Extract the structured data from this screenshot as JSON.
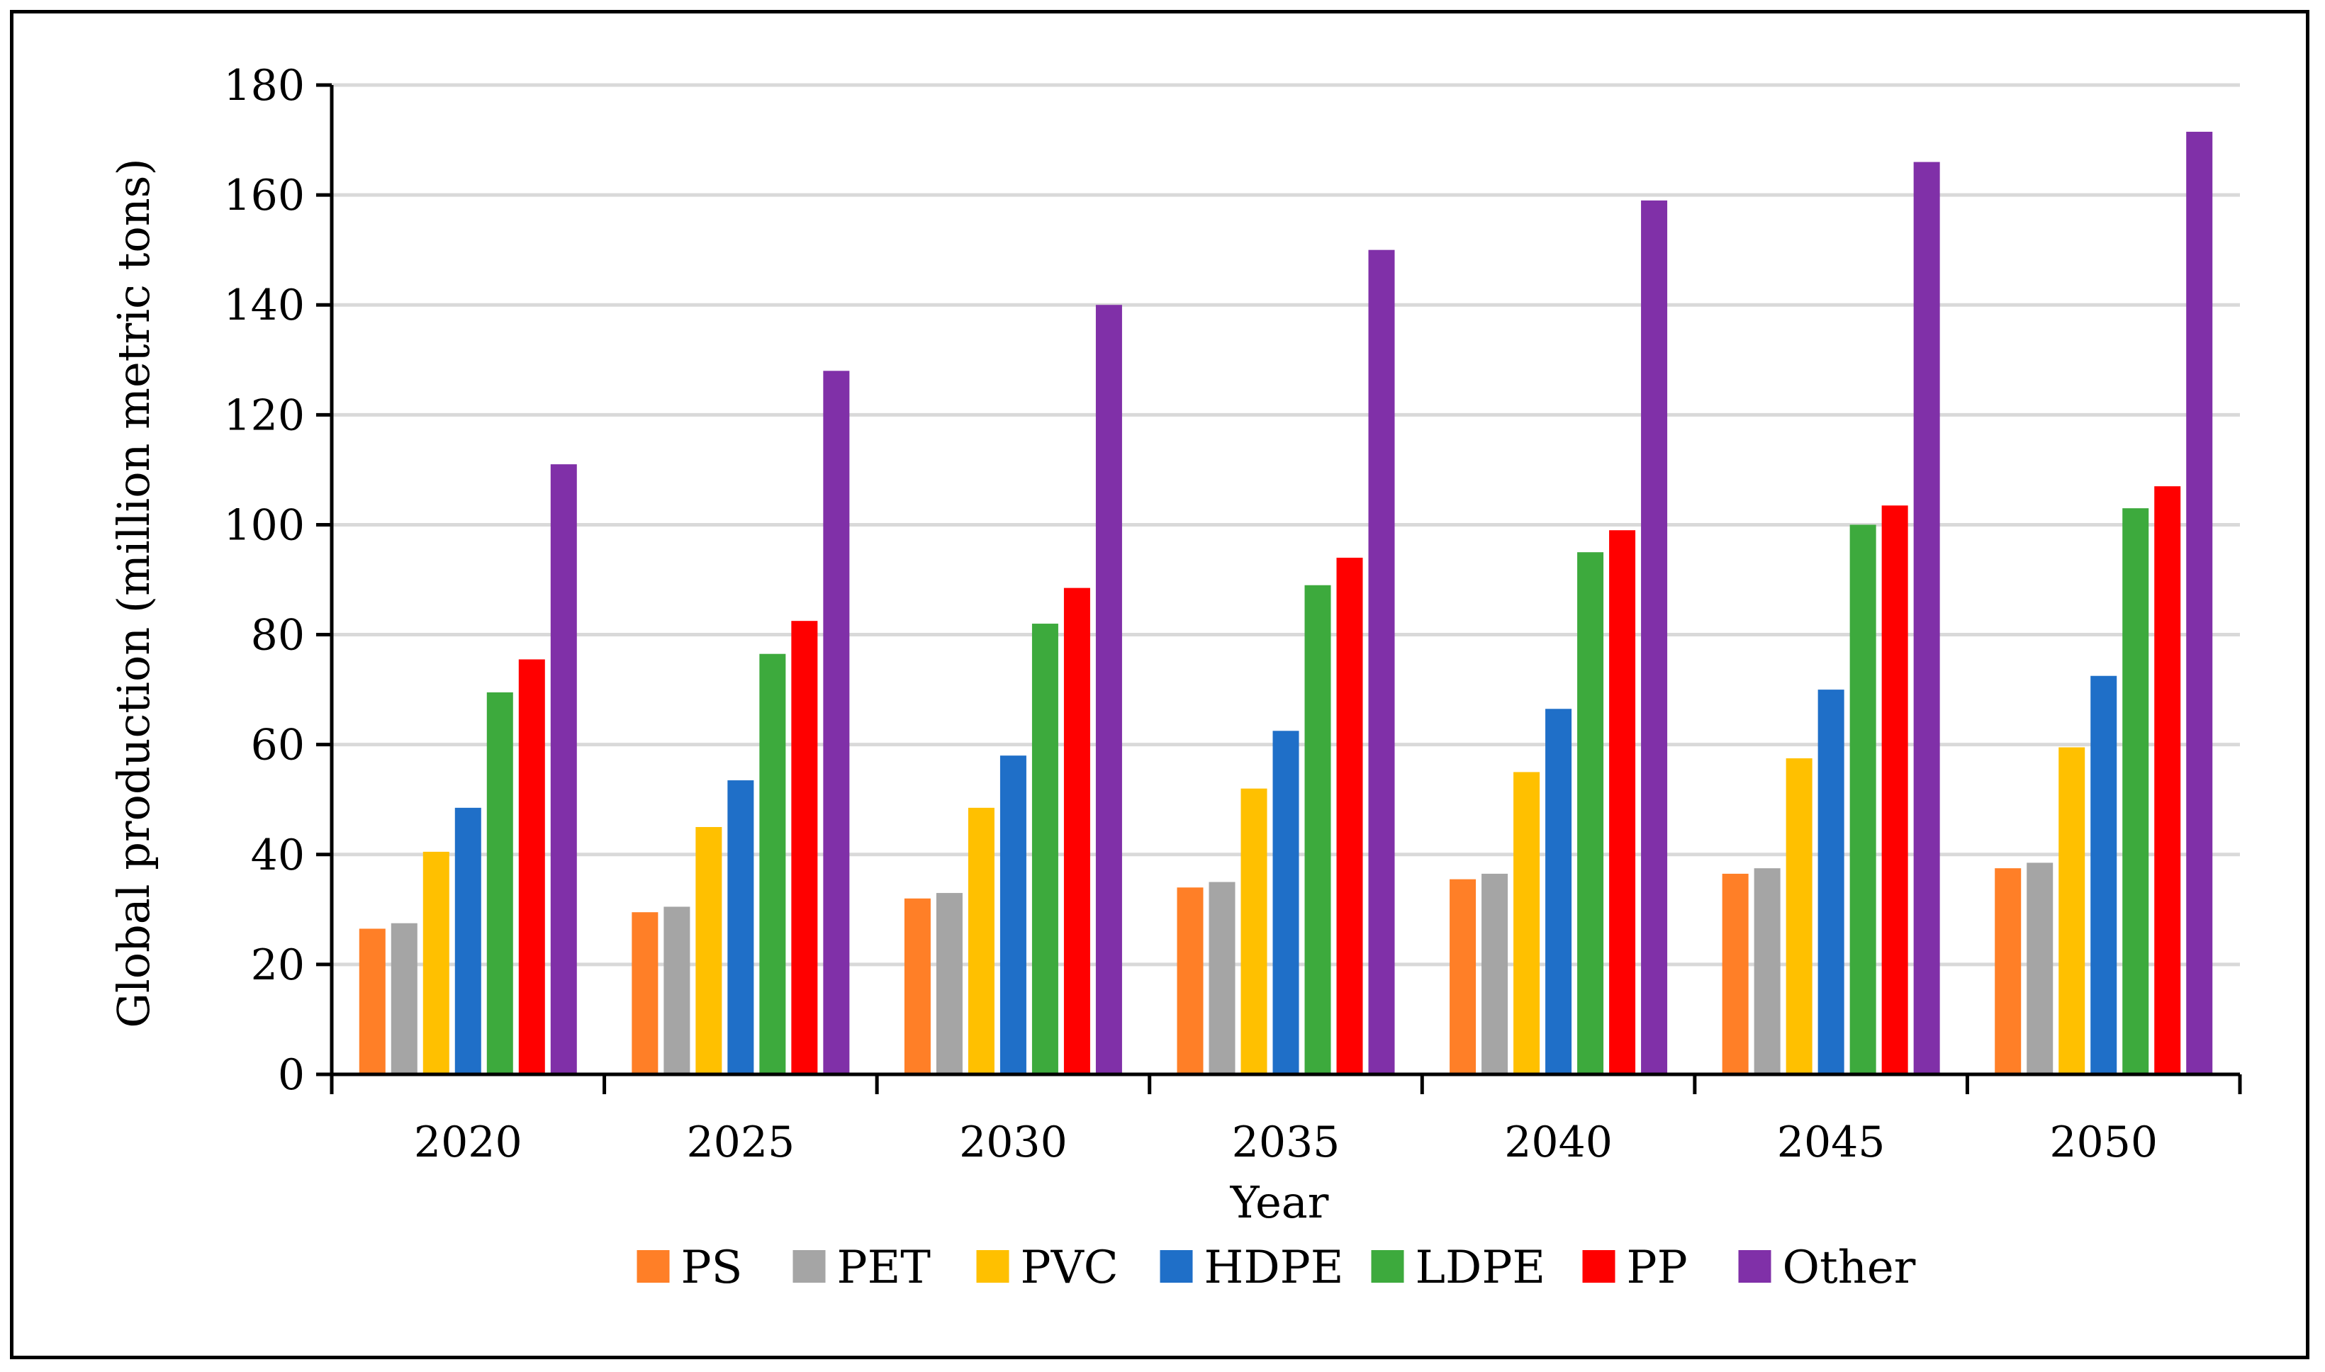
{
  "chart_data": {
    "type": "bar",
    "title": "",
    "xlabel": "Year",
    "ylabel": "Global production (million metric tons)",
    "ylim": [
      0,
      180
    ],
    "yticks": [
      0,
      20,
      40,
      60,
      80,
      100,
      120,
      140,
      160,
      180
    ],
    "grid": true,
    "legend_position": "bottom",
    "categories": [
      "2020",
      "2025",
      "2030",
      "2035",
      "2040",
      "2045",
      "2050"
    ],
    "series": [
      {
        "name": "PS",
        "color": "#FF7F27",
        "values": [
          26.5,
          29.5,
          32,
          34,
          35.5,
          36.5,
          37.5
        ]
      },
      {
        "name": "PET",
        "color": "#A5A5A5",
        "values": [
          27.5,
          30.5,
          33,
          35,
          36.5,
          37.5,
          38.5
        ]
      },
      {
        "name": "PVC",
        "color": "#FFC000",
        "values": [
          40.5,
          45,
          48.5,
          52,
          55,
          57.5,
          59.5
        ]
      },
      {
        "name": "HDPE",
        "color": "#1F6FC8",
        "values": [
          48.5,
          53.5,
          58,
          62.5,
          66.5,
          70,
          72.5
        ]
      },
      {
        "name": "LDPE",
        "color": "#3DAA3D",
        "values": [
          69.5,
          76.5,
          82,
          89,
          95,
          100,
          103
        ]
      },
      {
        "name": "PP",
        "color": "#FF0000",
        "values": [
          75.5,
          82.5,
          88.5,
          94,
          99,
          103.5,
          107
        ]
      },
      {
        "name": "Other",
        "color": "#8030A8",
        "values": [
          111,
          128,
          140,
          150,
          159,
          166,
          171.5
        ]
      }
    ]
  }
}
